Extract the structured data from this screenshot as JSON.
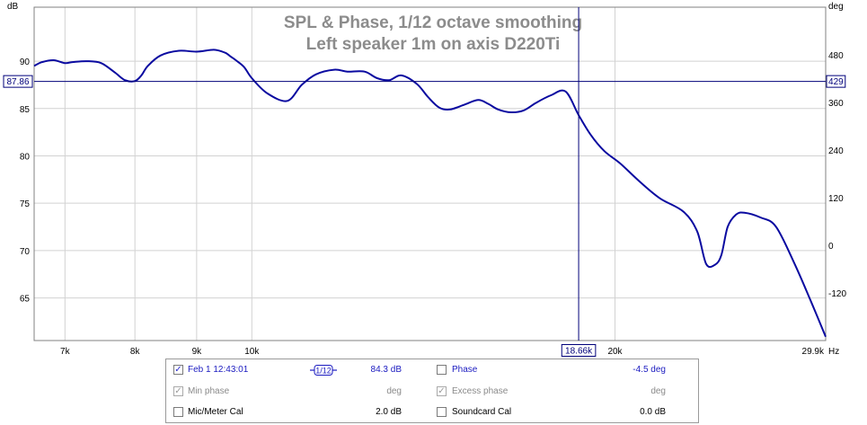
{
  "chart_data": {
    "type": "line",
    "title": "SPL & Phase, 1/12 octave smoothing",
    "subtitle": "Left speaker 1m on axis D220Ti",
    "xlabel": "Hz",
    "ylabel_left": "dB",
    "ylabel_right": "deg",
    "x_scale": "log",
    "xlim": [
      6600,
      29900
    ],
    "ylim_left": [
      60.5,
      95.7
    ],
    "ylim_right": [
      -240,
      600
    ],
    "x_ticks": [
      {
        "value": 7000,
        "label": "7k"
      },
      {
        "value": 8000,
        "label": "8k"
      },
      {
        "value": 9000,
        "label": "9k"
      },
      {
        "value": 10000,
        "label": "10k"
      },
      {
        "value": 20000,
        "label": "20k"
      },
      {
        "value": 29900,
        "label": "29.9k"
      }
    ],
    "y_ticks_left": [
      "65",
      "70",
      "75",
      "80",
      "85",
      "90"
    ],
    "y_ticks_right": [
      "-120",
      "0",
      "120",
      "240",
      "360",
      "480"
    ],
    "grid": true,
    "series": [
      {
        "color": "#0a0aa0",
        "x": [
          6600,
          6700,
          6850,
          7000,
          7100,
          7300,
          7500,
          7700,
          7850,
          8000,
          8100,
          8200,
          8400,
          8700,
          9000,
          9300,
          9500,
          9600,
          9700,
          9850,
          10000,
          10300,
          10700,
          11000,
          11300,
          11700,
          12000,
          12400,
          12700,
          13000,
          13300,
          13700,
          14000,
          14300,
          14600,
          15000,
          15400,
          15700,
          16000,
          16400,
          16800,
          17200,
          17700,
          18200,
          18660,
          19100,
          19600,
          20200,
          21000,
          21800,
          22800,
          23400,
          23800,
          24200,
          24500,
          24800,
          25200,
          25600,
          26400,
          27200,
          28200,
          29100,
          29900
        ],
        "y": [
          89.5,
          89.9,
          90.1,
          89.8,
          89.9,
          90.0,
          89.8,
          88.8,
          88.0,
          87.9,
          88.5,
          89.5,
          90.6,
          91.1,
          91.0,
          91.2,
          90.9,
          90.5,
          90.1,
          89.4,
          88.2,
          86.6,
          85.8,
          87.5,
          88.6,
          89.1,
          88.9,
          88.9,
          88.2,
          88.0,
          88.5,
          87.6,
          86.2,
          85.1,
          84.9,
          85.4,
          85.9,
          85.5,
          84.9,
          84.6,
          84.8,
          85.6,
          86.4,
          86.8,
          84.3,
          82.2,
          80.5,
          79.2,
          77.2,
          75.5,
          74.1,
          72.0,
          68.6,
          68.5,
          69.5,
          72.5,
          73.8,
          74.0,
          73.5,
          72.5,
          68.5,
          64.5,
          60.9
        ]
      }
    ],
    "hline": {
      "value": 87.86,
      "label": "87.86",
      "right_label": "429"
    },
    "vline": {
      "value": 18660,
      "label": "18.66k"
    }
  },
  "legend": {
    "rows": [
      {
        "left": {
          "checked": true,
          "enabled": true,
          "label": "Feb 1 12:43:01",
          "value": "84.3 dB"
        },
        "right": {
          "checked": false,
          "enabled": true,
          "label": "Phase",
          "value": "-4.5 deg"
        }
      },
      {
        "left": {
          "checked": true,
          "enabled": false,
          "label": "Min phase",
          "value": "deg"
        },
        "right": {
          "checked": true,
          "enabled": false,
          "label": "Excess phase",
          "value": "deg"
        }
      },
      {
        "left": {
          "checked": false,
          "enabled": true,
          "label": "Mic/Meter Cal",
          "value": "2.0 dB"
        },
        "right": {
          "checked": false,
          "enabled": true,
          "label": "Soundcard Cal",
          "value": "0.0 dB"
        }
      }
    ],
    "smoothing_icon_text": "1/12"
  }
}
